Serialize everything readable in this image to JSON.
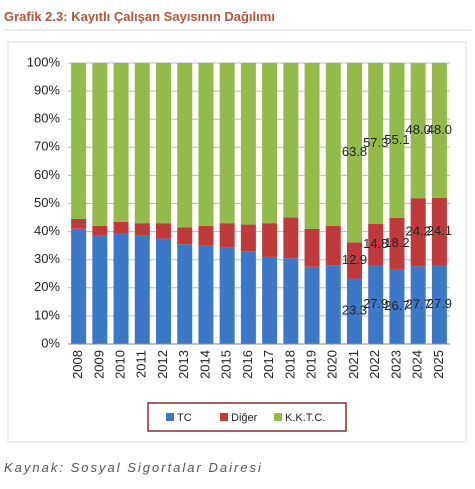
{
  "chart_data": {
    "type": "stacked_bar",
    "title": "Grafik 2.3: Kayıtlı Çalışan Sayısının Dağılımı",
    "source": "Kaynak: Sosyal Sigortalar Dairesi",
    "categories": [
      "2008",
      "2009",
      "2010",
      "2011",
      "2012",
      "2013",
      "2014",
      "2015",
      "2016",
      "2017",
      "2018",
      "2019",
      "2020",
      "2021",
      "2022",
      "2023",
      "2024",
      "2025"
    ],
    "series": [
      {
        "name": "TC",
        "color": "#3c78c8",
        "values": [
          41,
          38.5,
          39.5,
          38.5,
          37.5,
          35.5,
          35,
          34.5,
          33,
          31,
          30.5,
          27.5,
          28,
          23.3,
          27.9,
          26.7,
          27.7,
          27.9
        ],
        "value_labels": [
          null,
          null,
          null,
          null,
          null,
          null,
          null,
          null,
          null,
          null,
          null,
          null,
          null,
          "23.3",
          "27.9",
          "26.7",
          "27.7",
          "27.9"
        ]
      },
      {
        "name": "Diğer",
        "color": "#c0393b",
        "values": [
          3.5,
          3.5,
          4,
          4.5,
          5.5,
          6,
          7,
          8.5,
          9.5,
          12,
          14.5,
          13.5,
          14,
          12.9,
          14.8,
          18.2,
          24.2,
          24.1
        ],
        "value_labels": [
          null,
          null,
          null,
          null,
          null,
          null,
          null,
          null,
          null,
          null,
          null,
          null,
          null,
          "12.9",
          "14.8",
          "18.2",
          "24.2",
          "24.1"
        ]
      },
      {
        "name": "K.K.T.C.",
        "color": "#93bb4a",
        "values": [
          55.5,
          58,
          56.5,
          57,
          57,
          58.5,
          58,
          57,
          57.5,
          57,
          55,
          59,
          58,
          63.8,
          57.3,
          55.1,
          48,
          48
        ],
        "value_labels": [
          null,
          null,
          null,
          null,
          null,
          null,
          null,
          null,
          null,
          null,
          null,
          null,
          null,
          "63.8",
          "57.3",
          "55.1",
          "48.0",
          "48.0"
        ]
      }
    ],
    "ylim": [
      0,
      100
    ],
    "yticks": [
      {
        "value": 0,
        "label": "0%"
      },
      {
        "value": 10,
        "label": "10%"
      },
      {
        "value": 20,
        "label": "20%"
      },
      {
        "value": 30,
        "label": "30%"
      },
      {
        "value": 40,
        "label": "40%"
      },
      {
        "value": 50,
        "label": "50%"
      },
      {
        "value": 60,
        "label": "60%"
      },
      {
        "value": 70,
        "label": "70%"
      },
      {
        "value": 80,
        "label": "80%"
      },
      {
        "value": 90,
        "label": "90%"
      },
      {
        "value": 100,
        "label": "100%"
      }
    ],
    "grid": true,
    "legend": "bottom"
  }
}
